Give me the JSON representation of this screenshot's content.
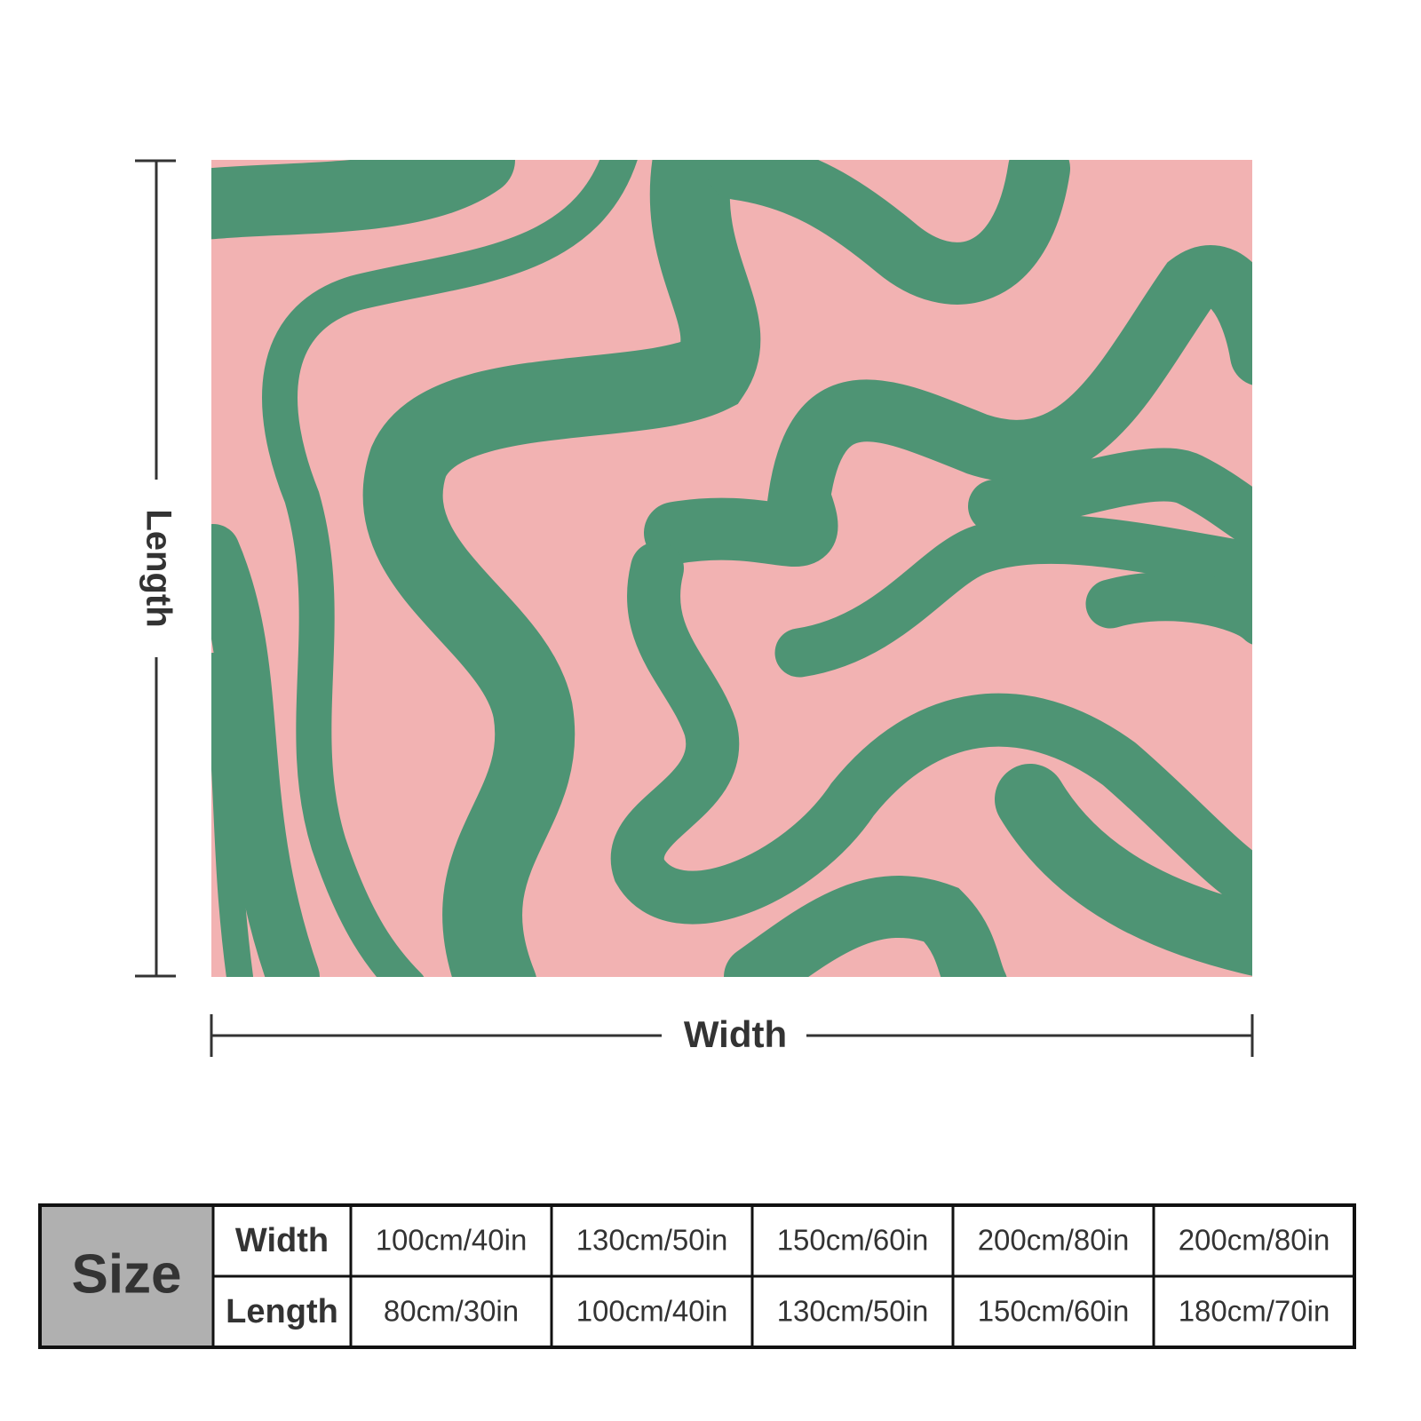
{
  "dimensions": {
    "length": "Length",
    "width": "Width"
  },
  "table": {
    "header": "Size",
    "row_labels": [
      "Width",
      "Length"
    ],
    "rows": [
      [
        "100cm/40in",
        "130cm/50in",
        "150cm/60in",
        "200cm/80in",
        "200cm/80in"
      ],
      [
        "80cm/30in",
        "100cm/40in",
        "130cm/50in",
        "150cm/60in",
        "180cm/70in"
      ]
    ]
  }
}
